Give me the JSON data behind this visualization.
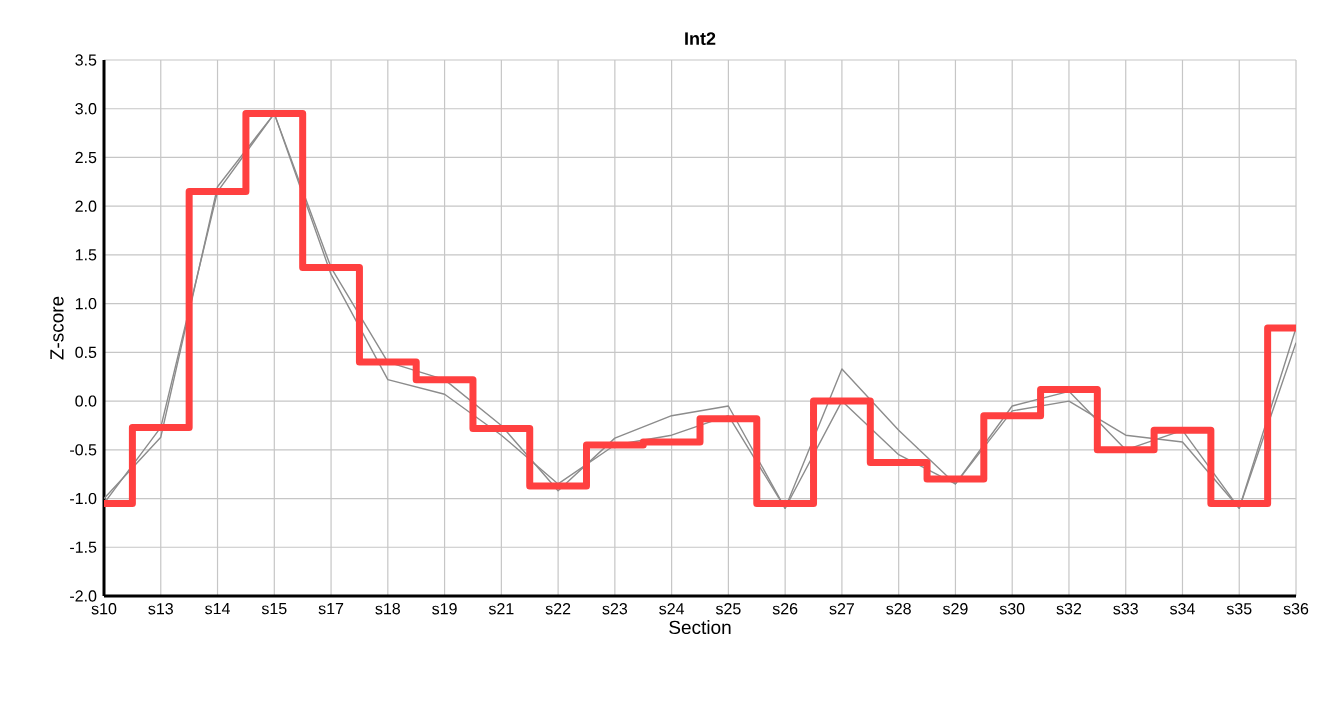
{
  "chart_data": {
    "type": "line",
    "title": "Int2",
    "xlabel": "Section",
    "ylabel": "Z-score",
    "categories": [
      "s10",
      "s13",
      "s14",
      "s15",
      "s17",
      "s18",
      "s19",
      "s21",
      "s22",
      "s23",
      "s24",
      "s25",
      "s26",
      "s27",
      "s28",
      "s29",
      "s30",
      "s32",
      "s33",
      "s34",
      "s35",
      "s36"
    ],
    "series": [
      {
        "color": "#8c8c8c",
        "values": [
          -1.05,
          -0.27,
          2.15,
          2.95,
          1.37,
          0.4,
          0.22,
          -0.25,
          -0.92,
          -0.38,
          -0.15,
          -0.05,
          -1.1,
          0.33,
          -0.3,
          -0.85,
          -0.1,
          0.0,
          -0.35,
          -0.42,
          -1.1,
          0.6
        ]
      },
      {
        "color": "#8c8c8c",
        "values": [
          -1.0,
          -0.37,
          2.2,
          2.95,
          1.3,
          0.22,
          0.07,
          -0.35,
          -0.85,
          -0.45,
          -0.35,
          -0.15,
          -1.1,
          0.0,
          -0.55,
          -0.85,
          -0.05,
          0.1,
          -0.5,
          -0.3,
          -1.1,
          0.75
        ]
      },
      {
        "type": "step",
        "color": "#ff4040",
        "values": [
          -1.05,
          -0.27,
          2.15,
          2.95,
          1.37,
          0.4,
          0.22,
          -0.28,
          -0.87,
          -0.45,
          -0.42,
          -0.18,
          -1.05,
          0.0,
          -0.63,
          -0.8,
          -0.15,
          0.12,
          -0.5,
          -0.3,
          -1.05,
          0.75
        ]
      }
    ],
    "ylim": [
      -2.0,
      3.5
    ],
    "yticks": [
      {
        "value": -2.0,
        "label": "-2.0"
      },
      {
        "value": -1.5,
        "label": "-1.5"
      },
      {
        "value": -1.0,
        "label": "-1.0"
      },
      {
        "value": -0.5,
        "label": "-0.5"
      },
      {
        "value": 0.0,
        "label": "0.0"
      },
      {
        "value": 0.5,
        "label": "0.5"
      },
      {
        "value": 1.0,
        "label": "1.0"
      },
      {
        "value": 1.5,
        "label": "1.5"
      },
      {
        "value": 2.0,
        "label": "2.0"
      },
      {
        "value": 2.5,
        "label": "2.5"
      },
      {
        "value": 3.0,
        "label": "3.0"
      },
      {
        "value": 3.5,
        "label": "3.5"
      }
    ],
    "grid": true
  }
}
